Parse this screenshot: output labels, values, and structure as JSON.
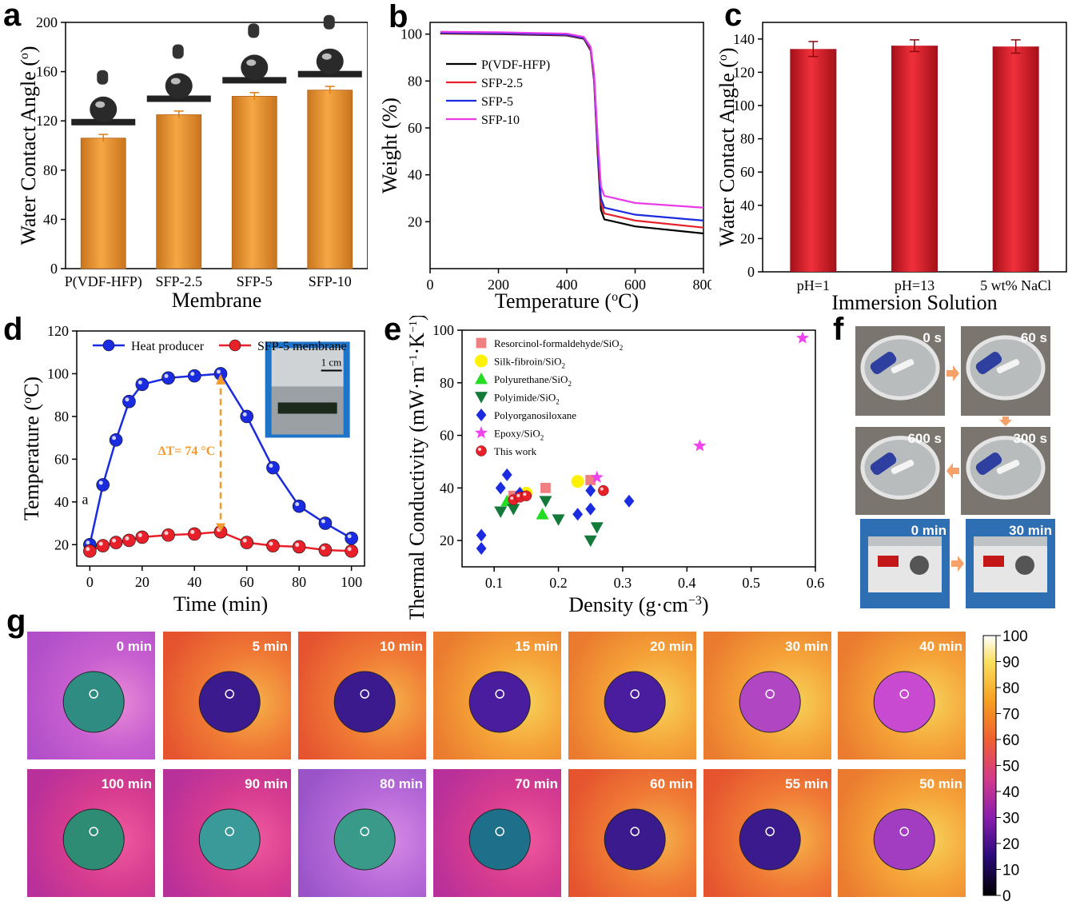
{
  "panels": {
    "a": "a",
    "b": "b",
    "c": "c",
    "d": "d",
    "e": "e",
    "f": "f",
    "g": "g"
  },
  "colors": {
    "orange": "#F39A2E",
    "red": "#E8202A",
    "blue": "#1A2BE0",
    "magenta": "#E93CE8",
    "black": "#000000"
  },
  "chart_data": [
    {
      "id": "a",
      "type": "bar",
      "xlabel": "Membrane",
      "ylabel": "Water Contact Angle (o)",
      "categories": [
        "P(VDF-HFP)",
        "SFP-2.5",
        "SFP-5",
        "SFP-10"
      ],
      "values": [
        106,
        125,
        140,
        145
      ],
      "errors": [
        3,
        3,
        3,
        3
      ],
      "ylim": [
        0,
        200
      ],
      "yticks": [
        0,
        40,
        80,
        120,
        160,
        200
      ]
    },
    {
      "id": "b",
      "type": "line",
      "xlabel": "Temperature (oC)",
      "ylabel": "Weight (%)",
      "xlim": [
        0,
        800
      ],
      "ylim": [
        0,
        105
      ],
      "xticks": [
        0,
        200,
        400,
        600,
        800
      ],
      "yticks": [
        20,
        40,
        60,
        80,
        100
      ],
      "legend_position": "upper-left",
      "series": [
        {
          "name": "P(VDF-HFP)",
          "color": "#000000",
          "residue": 15,
          "points": [
            [
              30,
              100.2
            ],
            [
              200,
              100
            ],
            [
              400,
              99.4
            ],
            [
              450,
              98
            ],
            [
              470,
              93
            ],
            [
              480,
              80
            ],
            [
              490,
              50
            ],
            [
              500,
              25
            ],
            [
              510,
              21
            ],
            [
              600,
              18
            ],
            [
              800,
              15
            ]
          ]
        },
        {
          "name": "SFP-2.5",
          "color": "#E8202A",
          "residue": 17.5,
          "points": [
            [
              30,
              100.4
            ],
            [
              200,
              100.2
            ],
            [
              400,
              99.6
            ],
            [
              450,
              98.2
            ],
            [
              470,
              93.5
            ],
            [
              480,
              81
            ],
            [
              490,
              52
            ],
            [
              500,
              28
            ],
            [
              510,
              23.5
            ],
            [
              600,
              20.5
            ],
            [
              800,
              17.5
            ]
          ]
        },
        {
          "name": "SFP-5",
          "color": "#1A2BE0",
          "residue": 20.5,
          "points": [
            [
              30,
              100.6
            ],
            [
              200,
              100.4
            ],
            [
              400,
              99.8
            ],
            [
              450,
              98.4
            ],
            [
              470,
              94
            ],
            [
              480,
              82
            ],
            [
              490,
              54
            ],
            [
              500,
              30
            ],
            [
              510,
              26
            ],
            [
              600,
              23
            ],
            [
              800,
              20.5
            ]
          ]
        },
        {
          "name": "SFP-10",
          "color": "#E93CE8",
          "residue": 26,
          "points": [
            [
              30,
              101
            ],
            [
              200,
              100.8
            ],
            [
              400,
              100.2
            ],
            [
              450,
              98.8
            ],
            [
              470,
              94.5
            ],
            [
              480,
              83
            ],
            [
              490,
              57
            ],
            [
              500,
              35
            ],
            [
              510,
              31
            ],
            [
              600,
              28
            ],
            [
              800,
              26
            ]
          ]
        }
      ]
    },
    {
      "id": "c",
      "type": "bar",
      "xlabel": "Immersion Solution",
      "ylabel": "Water Contact Angle (o)",
      "categories": [
        "pH=1",
        "pH=13",
        "5 wt% NaCl"
      ],
      "values": [
        134,
        136,
        135.5
      ],
      "errors": [
        4.5,
        3.5,
        4
      ],
      "ylim": [
        0,
        150
      ],
      "yticks": [
        0,
        20,
        40,
        60,
        80,
        100,
        120,
        140
      ]
    },
    {
      "id": "d",
      "type": "line",
      "xlabel": "Time (min)",
      "ylabel": "Temperature (oC)",
      "xlim": [
        -5,
        105
      ],
      "ylim": [
        10,
        120
      ],
      "xticks": [
        0,
        20,
        40,
        60,
        80,
        100
      ],
      "yticks": [
        20,
        40,
        60,
        80,
        100,
        120
      ],
      "legend_position": "top",
      "annotation": "ΔT= 74 °C",
      "marker_label": "a",
      "inset_scale": "1 cm",
      "series": [
        {
          "name": "Heat producer",
          "color": "#1A2BE0",
          "x": [
            0,
            5,
            10,
            15,
            20,
            30,
            40,
            50,
            60,
            70,
            80,
            90,
            100
          ],
          "y": [
            20,
            48,
            69,
            87,
            95,
            98,
            99,
            100,
            80,
            56,
            38,
            30,
            23
          ]
        },
        {
          "name": "SFP-5 membrane",
          "color": "#E8202A",
          "x": [
            0,
            5,
            10,
            15,
            20,
            30,
            40,
            50,
            60,
            70,
            80,
            90,
            100
          ],
          "y": [
            17,
            19.5,
            21,
            22,
            23.5,
            24.5,
            25,
            26,
            21,
            19.5,
            19,
            17.5,
            17
          ]
        }
      ]
    },
    {
      "id": "e",
      "type": "scatter",
      "xlabel": "Density (g·cm−3)",
      "ylabel": "Thermal Conductivity (mW·m−1·K−1)",
      "xlim": [
        0.05,
        0.6
      ],
      "ylim": [
        10,
        100
      ],
      "xticks": [
        0.1,
        0.2,
        0.3,
        0.4,
        0.5,
        0.6
      ],
      "yticks": [
        20,
        40,
        60,
        80,
        100
      ],
      "legend_position": "upper-left",
      "series": [
        {
          "name": "Resorcinol-formaldehyde/SiO",
          "sub": "2",
          "marker": "square",
          "color": "#F08080",
          "points": [
            [
              0.18,
              40
            ],
            [
              0.25,
              43
            ],
            [
              0.13,
              37
            ]
          ]
        },
        {
          "name": "Silk-fibroin/SiO",
          "sub": "2",
          "marker": "circle",
          "color": "#FFF200",
          "points": [
            [
              0.23,
              42.5
            ],
            [
              0.15,
              38
            ]
          ]
        },
        {
          "name": "Polyurethane/SiO",
          "sub": "2",
          "marker": "triangle-up",
          "color": "#22DD22",
          "points": [
            [
              0.12,
              35
            ],
            [
              0.175,
              30
            ],
            [
              0.14,
              37
            ]
          ]
        },
        {
          "name": "Polyimide/SiO",
          "sub": "2",
          "marker": "triangle-down",
          "color": "#137A3A",
          "points": [
            [
              0.11,
              31
            ],
            [
              0.13,
              32
            ],
            [
              0.18,
              35
            ],
            [
              0.2,
              28
            ],
            [
              0.25,
              20
            ],
            [
              0.26,
              25
            ]
          ]
        },
        {
          "name": "Polyorganosiloxane",
          "sub": "",
          "marker": "diamond",
          "color": "#1A2BE0",
          "points": [
            [
              0.08,
              17
            ],
            [
              0.08,
              22
            ],
            [
              0.11,
              40
            ],
            [
              0.12,
              45
            ],
            [
              0.14,
              38
            ],
            [
              0.23,
              30
            ],
            [
              0.25,
              32
            ],
            [
              0.25,
              39
            ],
            [
              0.31,
              35
            ]
          ]
        },
        {
          "name": "Epoxy/SiO",
          "sub": "2",
          "marker": "star",
          "color": "#EE44EE",
          "points": [
            [
              0.58,
              97
            ],
            [
              0.42,
              56
            ],
            [
              0.26,
              44
            ]
          ]
        },
        {
          "name": "This work",
          "sub": "",
          "marker": "ball",
          "color": "#E8202A",
          "points": [
            [
              0.13,
              35.5
            ],
            [
              0.14,
              36.5
            ],
            [
              0.15,
              37
            ],
            [
              0.27,
              39
            ]
          ]
        }
      ]
    }
  ],
  "panel_f": {
    "labels": [
      "0 s",
      "60 s",
      "600 s",
      "300 s",
      "0 min",
      "30 min"
    ]
  },
  "panel_g": {
    "row1": [
      "0 min",
      "5 min",
      "10 min",
      "15 min",
      "20 min",
      "30 min",
      "40 min"
    ],
    "row2": [
      "100 min",
      "90 min",
      "80 min",
      "70 min",
      "60 min",
      "55 min",
      "50 min"
    ],
    "colorbar": {
      "min": 0,
      "max": 100,
      "ticks": [
        0,
        10,
        20,
        30,
        40,
        50,
        60,
        70,
        80,
        90,
        100
      ]
    }
  }
}
